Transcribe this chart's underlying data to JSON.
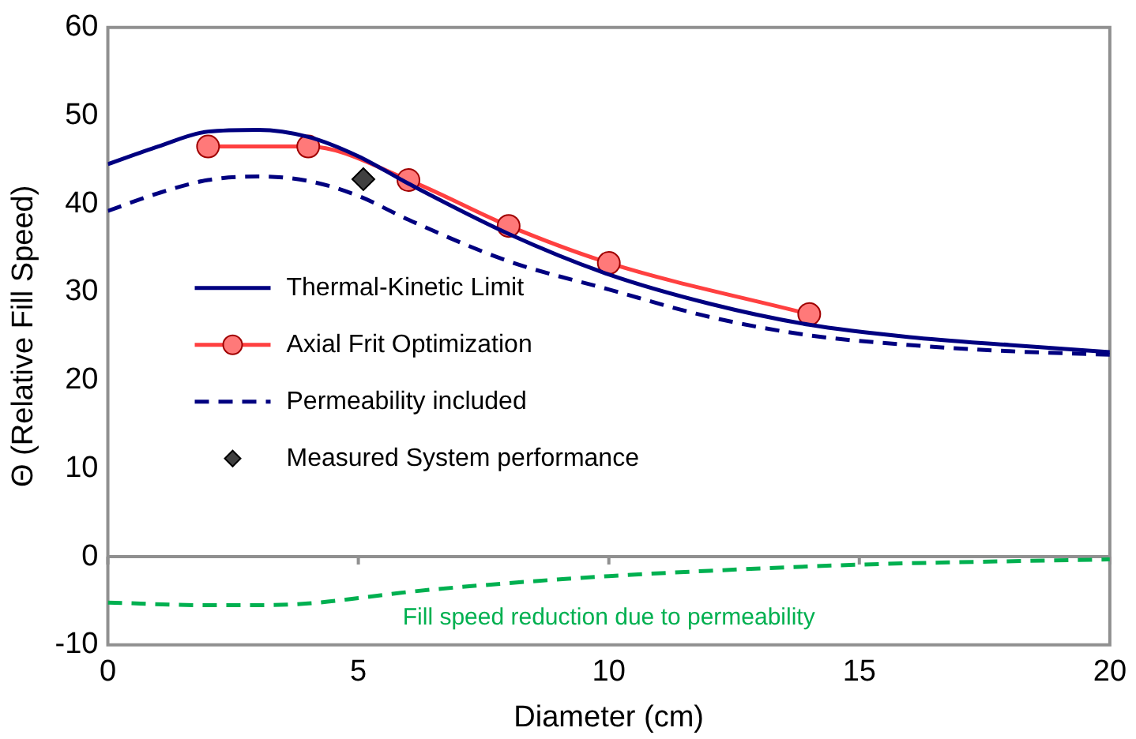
{
  "chart_data": {
    "type": "line",
    "xlabel": "Diameter (cm)",
    "ylabel": "Θ (Relative Fill Speed)",
    "xlim": [
      0,
      20
    ],
    "xticks": [
      0,
      5,
      10,
      15,
      20
    ],
    "ylim": [
      -10,
      60
    ],
    "yticks": [
      -10,
      0,
      10,
      20,
      30,
      40,
      50,
      60
    ],
    "grid": false,
    "legend": "center left",
    "series": [
      {
        "name": "Thermal-Kinetic Limit",
        "color": "#000080",
        "marker": "none",
        "line_style": "solid",
        "x": [
          0,
          1,
          2,
          3,
          4,
          5,
          6,
          8,
          10,
          12,
          14,
          16,
          18,
          20
        ],
        "values": [
          44.5,
          46.5,
          48.2,
          48.4,
          47.6,
          45.4,
          42.3,
          36.6,
          32,
          28.7,
          26.3,
          24.9,
          24,
          23.2
        ]
      },
      {
        "name": "Axial Frit Optimization",
        "color": "#ff4040",
        "marker": "circle",
        "line_style": "solid",
        "x": [
          2,
          4,
          6,
          8,
          10,
          14
        ],
        "values": [
          46.5,
          46.5,
          42.7,
          37.5,
          33.3,
          27.5
        ]
      },
      {
        "name": "Permeability included",
        "color": "#000080",
        "marker": "none",
        "line_style": "dashed",
        "x": [
          0,
          1,
          2,
          3,
          4,
          5,
          6,
          8,
          10,
          12,
          14,
          16,
          18,
          20
        ],
        "values": [
          39.2,
          41.2,
          42.7,
          43.1,
          42.6,
          40.9,
          38.2,
          33.5,
          30.3,
          27.2,
          25.1,
          24,
          23.3,
          22.9
        ]
      },
      {
        "name": "Measured System performance",
        "type": "scatter",
        "color": "#404040",
        "marker": "diamond",
        "x": [
          5.1
        ],
        "values": [
          42.8
        ]
      },
      {
        "color": "#00b050",
        "marker": "none",
        "line_style": "dashed",
        "x": [
          0,
          2,
          3,
          4,
          5,
          6,
          8,
          10,
          12,
          15,
          20
        ],
        "values": [
          -5.2,
          -5.5,
          -5.5,
          -5.3,
          -4.7,
          -4.0,
          -3.0,
          -2.2,
          -1.6,
          -0.9,
          -0.3
        ]
      }
    ],
    "ref_lines": [
      {
        "axis": "y",
        "value": 0,
        "color": "#909090"
      }
    ],
    "annotations": [
      "Fill speed reduction due to permeability"
    ]
  }
}
